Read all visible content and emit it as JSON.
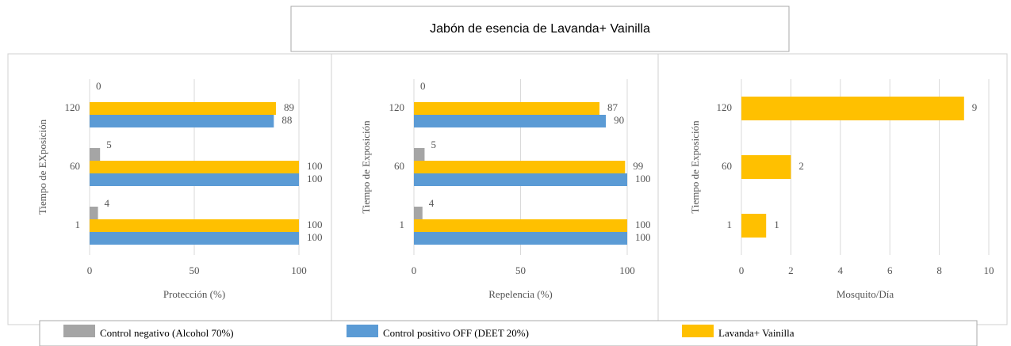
{
  "title": "Jabón de esencia de Lavanda+ Vainilla",
  "chart_data": [
    {
      "type": "barh",
      "xlabel": "Protección (%)",
      "ylabel": "Tiempo de EXposición",
      "categories": [
        "120",
        "60",
        "1"
      ],
      "series": [
        {
          "name": "Control negativo (Alcohol 70%)",
          "color": "#a5a5a5",
          "values": [
            0,
            5,
            4
          ]
        },
        {
          "name": "Control positivo OFF (DEET 20%)",
          "color": "#5b9bd5",
          "values": [
            88,
            100,
            100
          ]
        },
        {
          "name": "Lavanda+ Vainilla",
          "color": "#ffc000",
          "values": [
            89,
            100,
            100
          ]
        }
      ],
      "xlim": [
        0,
        100
      ],
      "xticks": [
        0,
        50,
        100
      ],
      "grid": true
    },
    {
      "type": "barh",
      "xlabel": "Repelencia (%)",
      "ylabel": "Tiempo de Exposición",
      "categories": [
        "120",
        "60",
        "1"
      ],
      "series": [
        {
          "name": "Control negativo (Alcohol 70%)",
          "color": "#a5a5a5",
          "values": [
            0,
            5,
            4
          ]
        },
        {
          "name": "Control positivo OFF (DEET 20%)",
          "color": "#5b9bd5",
          "values": [
            90,
            100,
            100
          ]
        },
        {
          "name": "Lavanda+ Vainilla",
          "color": "#ffc000",
          "values": [
            87,
            99,
            100
          ]
        }
      ],
      "xlim": [
        0,
        100
      ],
      "xticks": [
        0,
        50,
        100
      ],
      "grid": true
    },
    {
      "type": "barh",
      "xlabel": "Mosquito/Día",
      "ylabel": "Tiempo de Exposición",
      "categories": [
        "120",
        "60",
        "1"
      ],
      "series": [
        {
          "name": "Lavanda+ Vainilla",
          "color": "#ffc000",
          "values": [
            9,
            2,
            1
          ]
        }
      ],
      "xlim": [
        0,
        10
      ],
      "xticks": [
        0,
        2,
        4,
        6,
        8,
        10
      ],
      "grid": true
    }
  ]
}
